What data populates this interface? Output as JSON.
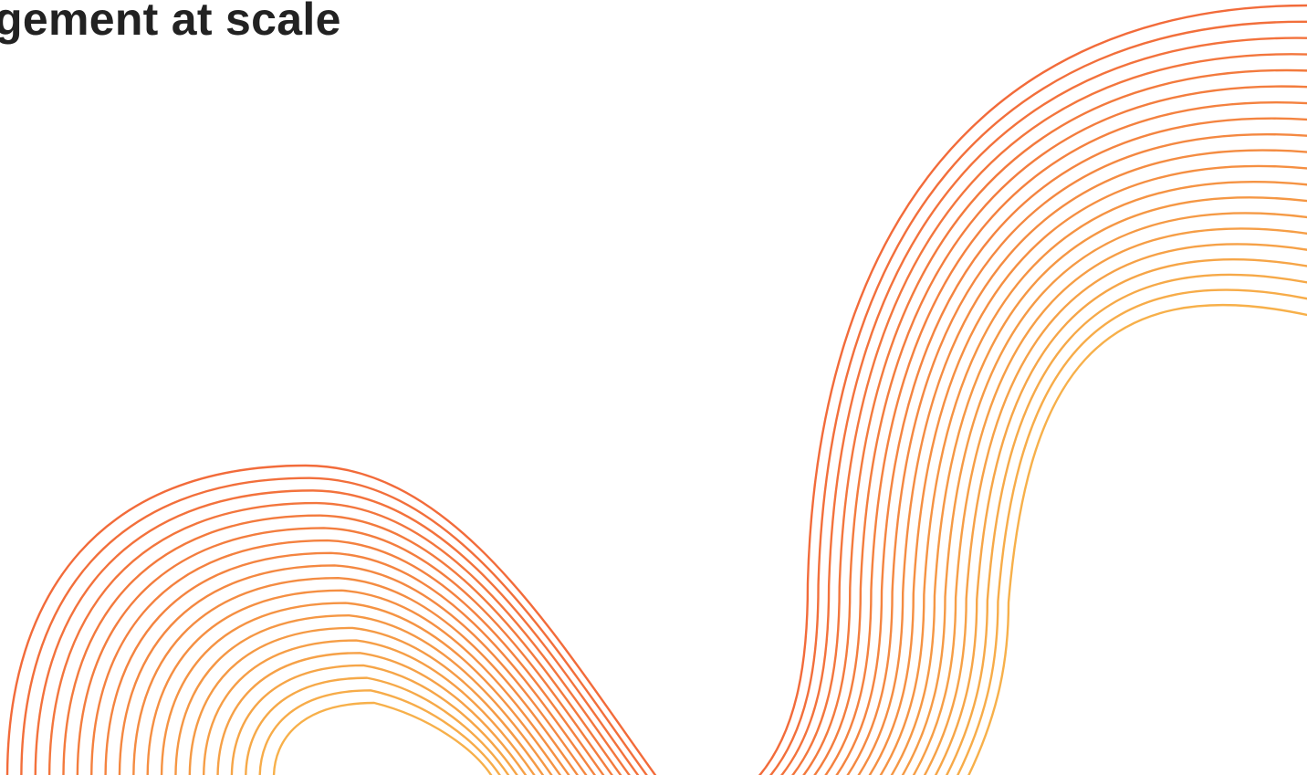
{
  "headline": {
    "text": "gement at scale"
  },
  "decoration": {
    "name": "flowing-line-waves",
    "colors": {
      "start": "#f26b3a",
      "end": "#f7b04a"
    },
    "line_count": 20
  }
}
